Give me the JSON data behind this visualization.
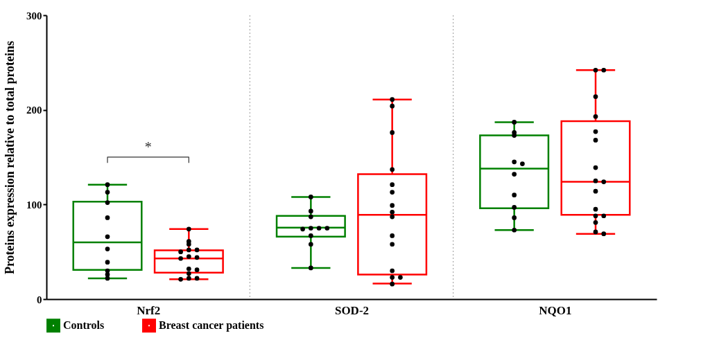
{
  "chart_data": {
    "type": "box",
    "ylabel": "Proteins expression relative to total proteins",
    "categories": [
      "Nrf2",
      "SOD-2",
      "NQO1"
    ],
    "ylim": [
      0,
      300
    ],
    "yticks": [
      0,
      100,
      200,
      300
    ],
    "grid": "x",
    "legend": "bottom",
    "annotations": [
      "*"
    ],
    "series": [
      {
        "name": "Controls",
        "color": "#008000",
        "boxes": [
          {
            "low": 22,
            "q1": 31,
            "median": 60,
            "q3": 103,
            "high": 121
          },
          {
            "low": 33,
            "q1": 66,
            "median": 75.5,
            "q3": 88,
            "high": 108
          },
          {
            "low": 73,
            "q1": 96,
            "median": 138,
            "q3": 173,
            "high": 187
          }
        ]
      },
      {
        "name": "Breast cancer patients",
        "color": "#ff0000",
        "boxes": [
          {
            "low": 21,
            "q1": 28,
            "median": 43,
            "q3": 51.5,
            "high": 74
          },
          {
            "low": 16.5,
            "q1": 26,
            "median": 89,
            "q3": 132,
            "high": 211
          },
          {
            "low": 69,
            "q1": 89,
            "median": 124,
            "q3": 188,
            "high": 242
          }
        ]
      },
      {
        "type": "scatter",
        "color": "#000000",
        "x": [
          "Nrf2",
          "Nrf2",
          "Nrf2",
          "Nrf2",
          "Nrf2",
          "Nrf2",
          "Nrf2",
          "Nrf2",
          "Nrf2",
          "Nrf2",
          "SOD-2",
          "SOD-2",
          "SOD-2",
          "SOD-2",
          "SOD-2",
          "SOD-2",
          "SOD-2",
          "SOD-2",
          "SOD-2",
          "SOD-2",
          "NQO1",
          "NQO1",
          "NQO1",
          "NQO1",
          "NQO1",
          "NQO1",
          "NQO1",
          "NQO1",
          "NQO1",
          "NQO1"
        ],
        "values": [
          121,
          113,
          102,
          86,
          66,
          53,
          39,
          30,
          26,
          22,
          108,
          93,
          87,
          75,
          75,
          74,
          75,
          67,
          58,
          33,
          187,
          176,
          173,
          145,
          143,
          132,
          110,
          97,
          86,
          73
        ]
      },
      {
        "type": "scatter",
        "color": "#000000",
        "x": [
          "Nrf2",
          "Nrf2",
          "Nrf2",
          "Nrf2",
          "Nrf2",
          "Nrf2",
          "Nrf2",
          "Nrf2",
          "Nrf2",
          "Nrf2",
          "Nrf2",
          "Nrf2",
          "Nrf2",
          "Nrf2",
          "Nrf2",
          "SOD-2",
          "SOD-2",
          "SOD-2",
          "SOD-2",
          "SOD-2",
          "SOD-2",
          "SOD-2",
          "SOD-2",
          "SOD-2",
          "SOD-2",
          "SOD-2",
          "SOD-2",
          "SOD-2",
          "SOD-2",
          "SOD-2",
          "NQO1",
          "NQO1",
          "NQO1",
          "NQO1",
          "NQO1",
          "NQO1",
          "NQO1",
          "NQO1",
          "NQO1",
          "NQO1",
          "NQO1",
          "NQO1",
          "NQO1",
          "NQO1",
          "NQO1",
          "NQO1"
        ],
        "values": [
          74,
          61,
          58,
          52,
          52,
          50,
          45,
          44,
          43,
          32,
          31,
          27,
          22,
          22,
          21,
          211,
          204,
          176,
          137,
          121,
          113,
          99,
          92,
          87,
          67,
          58,
          30,
          23,
          23,
          16,
          242,
          242,
          214,
          193,
          177,
          168,
          139,
          125,
          124,
          114,
          95,
          88,
          88,
          81,
          71,
          69
        ]
      }
    ]
  }
}
